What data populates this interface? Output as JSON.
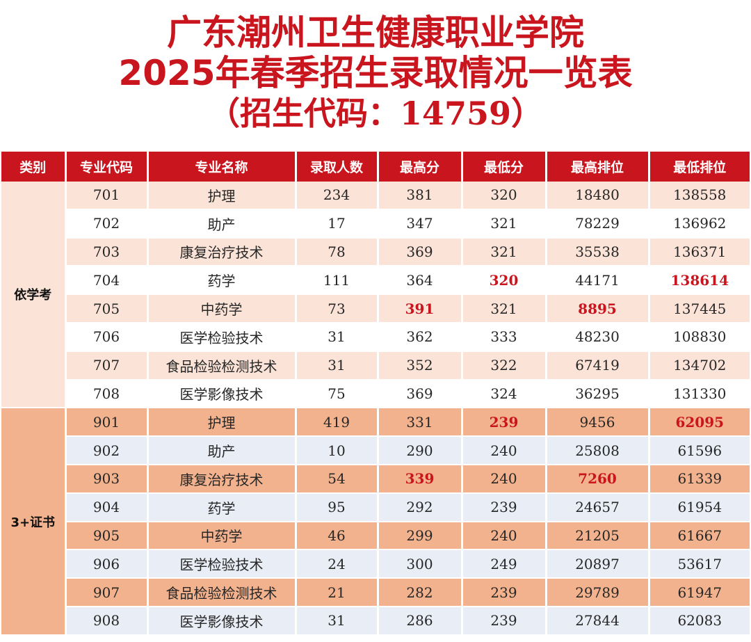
{
  "title": {
    "line1": "广东潮州卫生健康职业学院",
    "line2": "2025年春季招生录取情况一览表",
    "line3": "（招生代码：14759）"
  },
  "colors": {
    "accent_red": "#c9151e",
    "group1_band": "#fbe3d7",
    "group2_band": "#f2b28d",
    "group2_alt": "#e9edf5"
  },
  "table": {
    "headers": [
      "类别",
      "专业代码",
      "专业名称",
      "录取人数",
      "最高分",
      "最低分",
      "最高排位",
      "最低排位"
    ],
    "groups": [
      {
        "category": "依学考",
        "rows": [
          {
            "code": "701",
            "name": "护理",
            "count": "234",
            "max": "381",
            "min": "320",
            "max_rank": "18480",
            "min_rank": "138558"
          },
          {
            "code": "702",
            "name": "助产",
            "count": "17",
            "max": "347",
            "min": "321",
            "max_rank": "78229",
            "min_rank": "136962"
          },
          {
            "code": "703",
            "name": "康复治疗技术",
            "count": "78",
            "max": "369",
            "min": "321",
            "max_rank": "35538",
            "min_rank": "136371"
          },
          {
            "code": "704",
            "name": "药学",
            "count": "111",
            "max": "364",
            "min": "320",
            "max_rank": "44171",
            "min_rank": "138614"
          },
          {
            "code": "705",
            "name": "中药学",
            "count": "73",
            "max": "391",
            "min": "321",
            "max_rank": "8895",
            "min_rank": "137445"
          },
          {
            "code": "706",
            "name": "医学检验技术",
            "count": "31",
            "max": "362",
            "min": "333",
            "max_rank": "48230",
            "min_rank": "108830"
          },
          {
            "code": "707",
            "name": "食品检验检测技术",
            "count": "31",
            "max": "352",
            "min": "322",
            "max_rank": "67419",
            "min_rank": "134702"
          },
          {
            "code": "708",
            "name": "医学影像技术",
            "count": "75",
            "max": "369",
            "min": "324",
            "max_rank": "36295",
            "min_rank": "131330"
          }
        ]
      },
      {
        "category": "3+证书",
        "rows": [
          {
            "code": "901",
            "name": "护理",
            "count": "419",
            "max": "331",
            "min": "239",
            "max_rank": "9456",
            "min_rank": "62095"
          },
          {
            "code": "902",
            "name": "助产",
            "count": "10",
            "max": "290",
            "min": "240",
            "max_rank": "25808",
            "min_rank": "61596"
          },
          {
            "code": "903",
            "name": "康复治疗技术",
            "count": "54",
            "max": "339",
            "min": "240",
            "max_rank": "7260",
            "min_rank": "61339"
          },
          {
            "code": "904",
            "name": "药学",
            "count": "95",
            "max": "292",
            "min": "239",
            "max_rank": "24657",
            "min_rank": "61954"
          },
          {
            "code": "905",
            "name": "中药学",
            "count": "46",
            "max": "299",
            "min": "240",
            "max_rank": "21205",
            "min_rank": "61667"
          },
          {
            "code": "906",
            "name": "医学检验技术",
            "count": "24",
            "max": "300",
            "min": "249",
            "max_rank": "20897",
            "min_rank": "53617"
          },
          {
            "code": "907",
            "name": "食品检验检测技术",
            "count": "21",
            "max": "282",
            "min": "239",
            "max_rank": "29789",
            "min_rank": "61947"
          },
          {
            "code": "908",
            "name": "医学影像技术",
            "count": "31",
            "max": "286",
            "min": "239",
            "max_rank": "27844",
            "min_rank": "62083"
          }
        ]
      }
    ]
  }
}
